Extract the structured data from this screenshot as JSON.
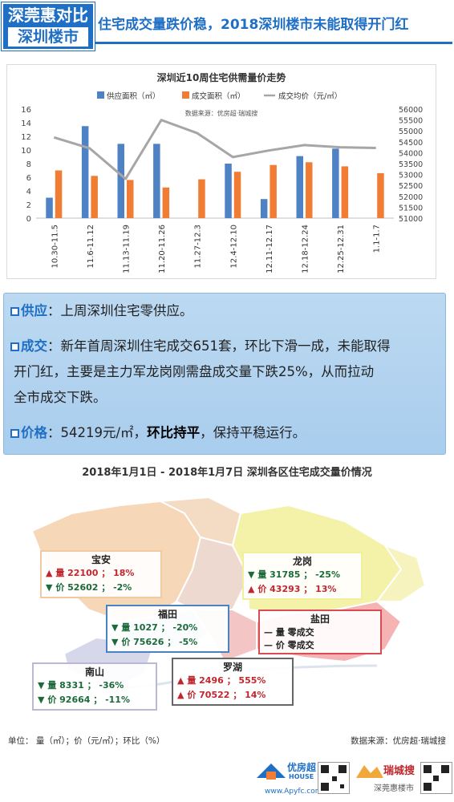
{
  "header": {
    "badge_line1": "深莞惠对比",
    "badge_line2": "深圳楼市",
    "title": "住宅成交量跌价稳，2018深圳楼市未能取得开门红"
  },
  "chart_data": {
    "type": "bar",
    "title": "深圳近10周住宅供需量价走势",
    "source": "数据来源：优房超·瑞城搜",
    "categories": [
      "10.30-11.5",
      "11.6-11.12",
      "11.13-11.19",
      "11.20-11.26",
      "11.27-12.3",
      "12.4-12.10",
      "12.11-12.17",
      "12.18-12.24",
      "12.25-12.31",
      "1.1-1.7"
    ],
    "series": [
      {
        "name": "供应面积（㎡）",
        "color": "#4f81c5",
        "values": [
          3.0,
          13.5,
          10.9,
          10.9,
          0,
          8.0,
          2.8,
          9.1,
          10.2,
          0
        ]
      },
      {
        "name": "成交面积（㎡）",
        "color": "#f07d33",
        "values": [
          7.0,
          6.2,
          5.6,
          4.5,
          5.7,
          6.8,
          7.8,
          8.2,
          7.6,
          6.6
        ]
      },
      {
        "name": "成交均价（元/㎡）",
        "color": "#a6a6a6",
        "type": "line",
        "axis": "right",
        "values": [
          54700,
          54200,
          52800,
          55500,
          54900,
          53800,
          54100,
          54350,
          54250,
          54219
        ]
      }
    ],
    "y_left": {
      "ylim": [
        0,
        16
      ],
      "ticks": [
        "0",
        "2",
        "4",
        "6",
        "8",
        "10",
        "12",
        "14",
        "16"
      ]
    },
    "y_right": {
      "ylim": [
        51000,
        56000
      ],
      "ticks": [
        "51000",
        "51500",
        "52000",
        "52500",
        "53000",
        "53500",
        "54000",
        "54500",
        "55000",
        "55500",
        "56000"
      ]
    },
    "legend": "top",
    "grid": false
  },
  "info": {
    "supply_key": "供应",
    "supply_text": "：上周深圳住宅零供应。",
    "deal_key": "成交",
    "deal_line1": "：新年首周深圳住宅成交651套，环比下滑一成，未能取得",
    "deal_line2": "开门红，主要是主力军龙岗刚需盘成交量下跌25%，从而拉动",
    "deal_line3": "全市成交下跌。",
    "price_key": "价格",
    "price_a": "：54219元/㎡，",
    "price_b": "环比持平",
    "price_c": "，保持平稳运行。"
  },
  "map": {
    "title": "2018年1月1日 - 2018年1月7日  深圳各区住宅成交量价情况",
    "districts": [
      {
        "name": "宝安",
        "vol_arrow": "▲",
        "vol": "量  22100 ； 18%",
        "price_arrow": "▼",
        "price": "价  52602 ； -2%",
        "border": "#f2c9a0"
      },
      {
        "name": "龙岗",
        "vol_arrow": "▼",
        "vol": "量  31785 ； -25%",
        "price_arrow": "▲",
        "price": "价  43293 ； 13%",
        "border": "#f1ef9a"
      },
      {
        "name": "福田",
        "vol_arrow": "▼",
        "vol": "量  1027 ； -20%",
        "price_arrow": "▼",
        "price": "价  75626 ； -5%",
        "border": "#4a83c1"
      },
      {
        "name": "盐田",
        "vol_arrow": "—",
        "vol": "量   零成交",
        "price_arrow": "—",
        "price": "价   零成交",
        "border": "#d94c54"
      },
      {
        "name": "南山",
        "vol_arrow": "▼",
        "vol": "量  8331 ； -36%",
        "price_arrow": "▼",
        "price": "价  92664 ； -11%",
        "border": "#b9b9d5"
      },
      {
        "name": "罗湖",
        "vol_arrow": "▲",
        "vol": "量  2496 ； 555%",
        "price_arrow": "▲",
        "price": "价  70522 ； 14%",
        "border": "#666666"
      }
    ]
  },
  "footer": {
    "units": "单位： 量（㎡）；价（元/㎡）；环比（%）",
    "source": "数据来源：优房超·瑞城搜",
    "logo1_cn": "优房超",
    "logo1_en": "HOUSE",
    "logo1_url": "www.Apyfc.com",
    "logo2_cn": "瑞城搜",
    "wechat": "深莞惠楼市"
  }
}
